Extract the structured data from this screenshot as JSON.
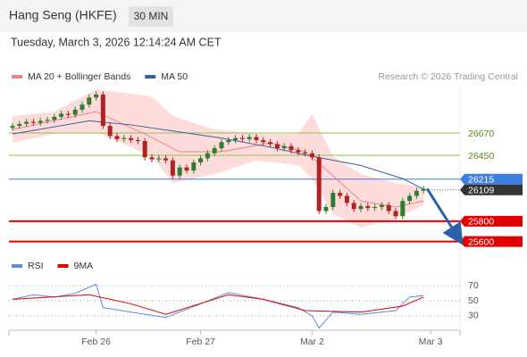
{
  "header": {
    "title": "Hang Seng (HKFE)",
    "interval": "30 MIN",
    "datetime": "Tuesday, March 3, 2026 12:14:24 AM CET"
  },
  "chart_data": [
    {
      "type": "candlestick",
      "legend": [
        {
          "name": "MA 20 + Bollinger Bands",
          "color": "#f08080"
        },
        {
          "name": "MA 50",
          "color": "#3a5fa0"
        }
      ],
      "credit": "Research © 2026 Trading Central",
      "ylim": [
        25517,
        27172
      ],
      "up_color": "#2e7d32",
      "down_color": "#b22222",
      "x_labels": [
        {
          "label": "Feb 26",
          "at": 12
        },
        {
          "label": "Feb 27",
          "at": 27
        },
        {
          "label": "Mar 2",
          "at": 43
        },
        {
          "label": "Mar 3",
          "at": 60
        }
      ],
      "open": [
        26720,
        26740,
        26760,
        26780,
        26770,
        26790,
        26800,
        26830,
        26860,
        26850,
        26900,
        26950,
        27020,
        27050,
        26740,
        26640,
        26610,
        26620,
        26600,
        26590,
        26430,
        26410,
        26420,
        26400,
        26250,
        26330,
        26300,
        26380,
        26420,
        26470,
        26520,
        26580,
        26600,
        26620,
        26610,
        26630,
        26600,
        26580,
        26560,
        26520,
        26540,
        26500,
        26480,
        26470,
        26430,
        25900,
        25940,
        26080,
        26050,
        25980,
        25920,
        25950,
        25930,
        25940,
        25960,
        25900,
        25850,
        26000,
        26050,
        26100
      ],
      "high": [
        26770,
        26790,
        26810,
        26810,
        26820,
        26830,
        26860,
        26890,
        26890,
        26930,
        26980,
        27050,
        27080,
        27080,
        26770,
        26670,
        26650,
        26650,
        26630,
        26620,
        26460,
        26450,
        26450,
        26430,
        26360,
        26360,
        26410,
        26450,
        26500,
        26550,
        26610,
        26630,
        26650,
        26650,
        26660,
        26660,
        26630,
        26610,
        26590,
        26570,
        26570,
        26530,
        26510,
        26500,
        26460,
        25970,
        26110,
        26110,
        26080,
        26010,
        25980,
        25980,
        25970,
        25990,
        25990,
        25930,
        26030,
        26080,
        26130,
        26150
      ],
      "low": [
        26690,
        26710,
        26730,
        26740,
        26740,
        26760,
        26770,
        26800,
        26820,
        26820,
        26870,
        26920,
        26990,
        26710,
        26610,
        26580,
        26580,
        26570,
        26560,
        26400,
        26380,
        26380,
        26370,
        26220,
        26220,
        26270,
        26270,
        26350,
        26390,
        26440,
        26490,
        26550,
        26570,
        26580,
        26580,
        26570,
        26550,
        26530,
        26490,
        26490,
        26470,
        26450,
        26440,
        26400,
        25870,
        25870,
        25910,
        26020,
        25950,
        25890,
        25890,
        25900,
        25900,
        25910,
        25870,
        25820,
        25820,
        25970,
        26020,
        26070
      ],
      "close": [
        26740,
        26760,
        26780,
        26770,
        26790,
        26800,
        26830,
        26860,
        26850,
        26900,
        26950,
        27020,
        27050,
        26740,
        26640,
        26610,
        26620,
        26600,
        26590,
        26430,
        26410,
        26420,
        26400,
        26250,
        26330,
        26300,
        26380,
        26420,
        26470,
        26520,
        26580,
        26600,
        26620,
        26610,
        26630,
        26600,
        26580,
        26560,
        26520,
        26540,
        26500,
        26480,
        26470,
        26430,
        25900,
        25940,
        26080,
        26050,
        25980,
        25920,
        25950,
        25930,
        25940,
        25960,
        25900,
        25850,
        26000,
        26050,
        26100,
        26120
      ],
      "ma50": {
        "color": "#3a5fa0",
        "x": [
          0,
          11,
          17,
          24,
          30,
          37,
          43,
          50,
          56,
          59
        ],
        "values": [
          26660,
          26790,
          26750,
          26680,
          26620,
          26530,
          26440,
          26350,
          26220,
          26115
        ]
      },
      "ma20": {
        "color": "#f08080",
        "x": [
          0,
          6,
          12,
          19,
          24,
          30,
          37,
          42,
          45,
          50,
          55,
          59
        ],
        "values": [
          26705,
          26793,
          26880,
          26660,
          26485,
          26485,
          26573,
          26485,
          26310,
          26000,
          25940,
          26000
        ]
      },
      "bollinger": {
        "color": "#ffd3d3",
        "x": [
          0,
          6,
          12,
          20,
          23,
          29,
          35,
          41,
          43,
          46,
          50,
          55,
          59
        ],
        "upper": [
          26837,
          26881,
          27101,
          27031,
          26837,
          26705,
          26661,
          26661,
          26855,
          26441,
          26265,
          26177,
          26133
        ],
        "lower": [
          26573,
          26661,
          26679,
          26441,
          26177,
          26265,
          26397,
          26353,
          26221,
          25869,
          25737,
          25825,
          25957
        ]
      },
      "levels": [
        {
          "value": 26670,
          "color": "#8bc34a",
          "boxed": false
        },
        {
          "value": 26450,
          "color": "#8bc34a",
          "boxed": false
        },
        {
          "value": 26215,
          "color": "#3d7fe0",
          "boxed": true
        },
        {
          "value": 26109,
          "color": "#333333",
          "boxed": true,
          "dotted": true
        },
        {
          "value": 25800,
          "color": "#e00000",
          "boxed": true
        },
        {
          "value": 25600,
          "color": "#e00000",
          "boxed": true
        }
      ],
      "target": 25600
    },
    {
      "type": "line",
      "legend": [
        {
          "name": "RSI",
          "color": "#5b8be0"
        },
        {
          "name": "9MA",
          "color": "#e00000"
        }
      ],
      "ylim": [
        11,
        82
      ],
      "yticks": [
        70,
        50,
        30
      ],
      "series": [
        {
          "name": "RSI",
          "color": "#5b8be0",
          "x": [
            0,
            3,
            6,
            9,
            12,
            13,
            17,
            22,
            27,
            31,
            36,
            41,
            43,
            44,
            46,
            50,
            55,
            57,
            59
          ],
          "values": [
            52,
            58,
            55,
            60,
            72,
            41,
            35,
            28,
            46,
            61,
            52,
            41,
            30,
            14,
            35,
            32,
            37,
            55,
            57
          ]
        },
        {
          "name": "9MA",
          "color": "#e00000",
          "x": [
            0,
            11,
            17,
            22,
            31,
            36,
            42,
            50,
            56,
            59
          ],
          "values": [
            52,
            58,
            46,
            32,
            58,
            52,
            37,
            35,
            43,
            55
          ]
        }
      ]
    }
  ]
}
